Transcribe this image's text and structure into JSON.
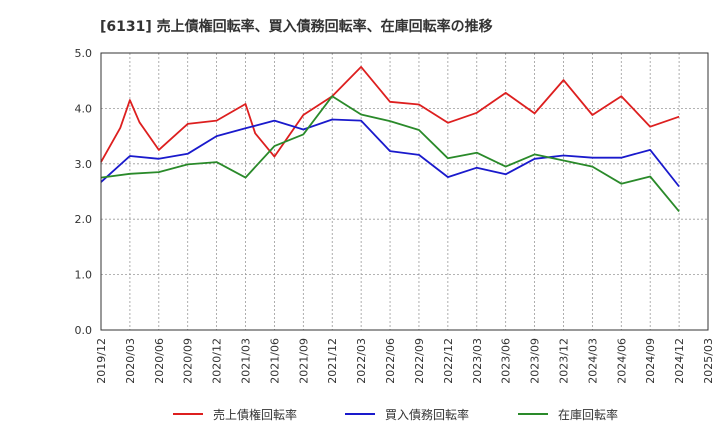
{
  "chart_data": {
    "type": "line",
    "title": "[6131]  売上債権回転率、買入債務回転率、在庫回転率の推移",
    "xlabel": "",
    "ylabel": "",
    "ylim": [
      0.0,
      5.0
    ],
    "y_ticks": [
      "0.0",
      "1.0",
      "2.0",
      "3.0",
      "4.0",
      "5.0"
    ],
    "x_ticks": [
      "2019/12",
      "2020/03",
      "2020/06",
      "2020/09",
      "2020/12",
      "2021/03",
      "2021/06",
      "2021/09",
      "2021/12",
      "2022/03",
      "2022/06",
      "2022/09",
      "2022/12",
      "2023/03",
      "2023/06",
      "2023/09",
      "2023/12",
      "2024/03",
      "2024/06",
      "2024/09",
      "2024/12",
      "2025/03"
    ],
    "grid": true,
    "legend_position": "bottom",
    "series": [
      {
        "name": "売上債権回転率",
        "color": "#dd1f1f",
        "x": [
          "2019/12",
          "2020/02",
          "2020/03",
          "2020/04",
          "2020/06",
          "2020/09",
          "2020/12",
          "2021/03",
          "2021/04",
          "2021/06",
          "2021/09",
          "2021/12",
          "2022/03",
          "2022/06",
          "2022/09",
          "2022/12",
          "2023/03",
          "2023/06",
          "2023/09",
          "2023/12",
          "2024/03",
          "2024/06",
          "2024/09",
          "2024/12"
        ],
        "values": [
          3.03,
          3.65,
          4.15,
          3.75,
          3.25,
          3.72,
          3.78,
          4.08,
          3.55,
          3.13,
          3.88,
          4.22,
          4.75,
          4.12,
          4.07,
          3.74,
          3.92,
          4.28,
          3.91,
          4.51,
          3.88,
          4.22,
          3.67,
          3.85
        ]
      },
      {
        "name": "買入債務回転率",
        "color": "#1a1acc",
        "x": [
          "2019/12",
          "2020/03",
          "2020/06",
          "2020/09",
          "2020/12",
          "2021/03",
          "2021/06",
          "2021/09",
          "2021/12",
          "2022/03",
          "2022/06",
          "2022/09",
          "2022/12",
          "2023/03",
          "2023/06",
          "2023/09",
          "2023/12",
          "2024/03",
          "2024/06",
          "2024/09",
          "2024/12"
        ],
        "values": [
          2.67,
          3.14,
          3.09,
          3.18,
          3.5,
          3.64,
          3.78,
          3.62,
          3.8,
          3.78,
          3.23,
          3.16,
          2.76,
          2.93,
          2.81,
          3.09,
          3.15,
          3.11,
          3.11,
          3.25,
          2.59
        ]
      },
      {
        "name": "在庫回転率",
        "color": "#2a8a2a",
        "x": [
          "2019/12",
          "2020/03",
          "2020/06",
          "2020/09",
          "2020/12",
          "2021/03",
          "2021/06",
          "2021/09",
          "2021/12",
          "2022/03",
          "2022/06",
          "2022/09",
          "2022/12",
          "2023/03",
          "2023/06",
          "2023/09",
          "2023/12",
          "2024/03",
          "2024/06",
          "2024/09",
          "2024/12"
        ],
        "values": [
          2.75,
          2.82,
          2.85,
          2.99,
          3.03,
          2.75,
          3.32,
          3.53,
          4.22,
          3.89,
          3.77,
          3.61,
          3.1,
          3.2,
          2.95,
          3.17,
          3.06,
          2.95,
          2.64,
          2.77,
          2.14
        ]
      }
    ]
  }
}
